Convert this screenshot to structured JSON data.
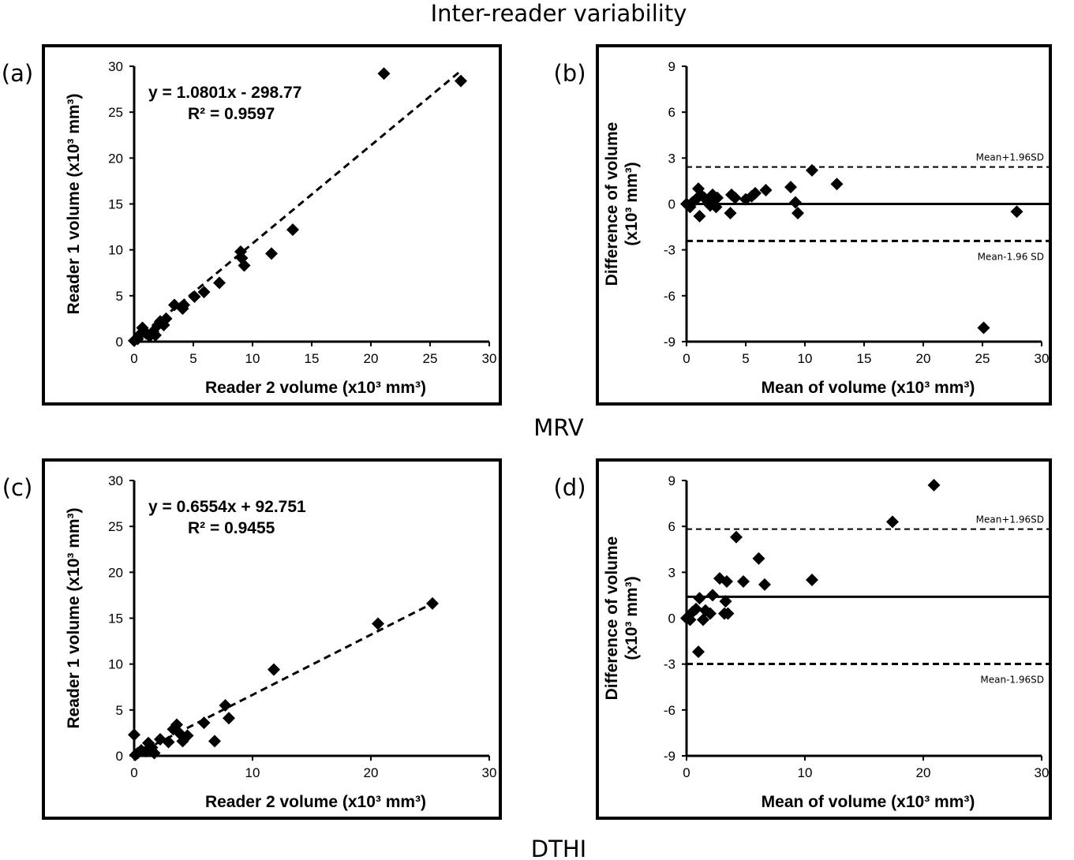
{
  "figure": {
    "title": "Inter-reader variability",
    "group_labels": [
      "MRV",
      "DTHI"
    ]
  },
  "chart_data": [
    {
      "panel": "(a)",
      "type": "scatter",
      "xlabel": "Reader 2 volume (x10³ mm³)",
      "ylabel": "Reader 1 volume (x10³ mm³)",
      "xlim": [
        0,
        30
      ],
      "ylim": [
        0,
        30
      ],
      "xticks": [
        0,
        5,
        10,
        15,
        20,
        25,
        30
      ],
      "yticks": [
        0,
        5,
        10,
        15,
        20,
        25,
        30
      ],
      "equation": "y = 1.0801x - 298.77",
      "r2": "R² = 0.9597",
      "trendline": {
        "slope": 1.0801,
        "intercept": -0.29877
      },
      "points": [
        [
          0,
          0.1
        ],
        [
          0.3,
          0.3
        ],
        [
          0.5,
          0.8
        ],
        [
          0.7,
          1.5
        ],
        [
          1,
          0.9
        ],
        [
          1.3,
          0.6
        ],
        [
          1.6,
          1.1
        ],
        [
          1.8,
          0.7
        ],
        [
          2,
          1.8
        ],
        [
          2.2,
          2.2
        ],
        [
          2.5,
          1.8
        ],
        [
          2.7,
          2.5
        ],
        [
          3.4,
          4
        ],
        [
          4.1,
          3.6
        ],
        [
          4.2,
          4
        ],
        [
          5.1,
          4.9
        ],
        [
          5.9,
          5.4
        ],
        [
          7.2,
          6.4
        ],
        [
          9,
          9.8
        ],
        [
          9.1,
          9.1
        ],
        [
          9.3,
          8.3
        ],
        [
          11.6,
          9.6
        ],
        [
          13.4,
          12.2
        ],
        [
          21.1,
          29.2
        ],
        [
          27.6,
          28.4
        ]
      ]
    },
    {
      "panel": "(b)",
      "type": "scatter",
      "xlabel": "Mean of volume (x10³ mm³)",
      "ylabel": "Difference of volume (x10³ mm³)",
      "ylabel_lines": [
        "Difference of volume",
        "(x10³ mm³)"
      ],
      "xlim": [
        0,
        30
      ],
      "ylim": [
        -9,
        9
      ],
      "xticks": [
        0,
        5,
        10,
        15,
        20,
        25,
        30
      ],
      "yticks": [
        -9,
        -6,
        -3,
        0,
        3,
        6,
        9
      ],
      "mean": 0.0,
      "upper": 2.42,
      "lower": -2.42,
      "upper_label": "Mean+1.96SD",
      "lower_label": "Mean-1.96 SD",
      "points": [
        [
          0,
          0
        ],
        [
          0.3,
          -0.2
        ],
        [
          0.5,
          0.1
        ],
        [
          0.8,
          0.3
        ],
        [
          1,
          1
        ],
        [
          1.1,
          -0.8
        ],
        [
          1.2,
          0.6
        ],
        [
          1.5,
          0.4
        ],
        [
          1.8,
          0.2
        ],
        [
          2,
          -0.1
        ],
        [
          2.2,
          0.6
        ],
        [
          2.3,
          0.2
        ],
        [
          2.5,
          -0.2
        ],
        [
          2.6,
          0.4
        ],
        [
          3.7,
          -0.6
        ],
        [
          3.8,
          0.6
        ],
        [
          4.1,
          0.4
        ],
        [
          5,
          0.3
        ],
        [
          5.5,
          0.5
        ],
        [
          5.8,
          0.7
        ],
        [
          6.7,
          0.9
        ],
        [
          8.8,
          1.1
        ],
        [
          9.2,
          0.1
        ],
        [
          9.4,
          -0.6
        ],
        [
          10.6,
          2.2
        ],
        [
          12.7,
          1.3
        ],
        [
          25.1,
          -8.1
        ],
        [
          27.9,
          -0.5
        ]
      ]
    },
    {
      "panel": "(c)",
      "type": "scatter",
      "xlabel": "Reader 2 volume (x10³ mm³)",
      "ylabel": "Reader 1 volume (x10³ mm³)",
      "xlim": [
        0,
        30
      ],
      "ylim": [
        0,
        30
      ],
      "xticks": [
        0,
        10,
        20,
        30
      ],
      "yticks": [
        0,
        5,
        10,
        15,
        20,
        25,
        30
      ],
      "equation": "y = 0.6554x + 92.751",
      "r2": "R² = 0.9455",
      "trendline": {
        "slope": 0.6554,
        "intercept": 0.092751
      },
      "points": [
        [
          0,
          2.3
        ],
        [
          0.1,
          0.1
        ],
        [
          0.3,
          0.3
        ],
        [
          0.6,
          0.6
        ],
        [
          1,
          0.5
        ],
        [
          1.2,
          1.4
        ],
        [
          1.5,
          0.9
        ],
        [
          1.7,
          0.3
        ],
        [
          2.2,
          1.8
        ],
        [
          2.9,
          1.5
        ],
        [
          3.3,
          2.9
        ],
        [
          3.6,
          3.4
        ],
        [
          3.8,
          2.5
        ],
        [
          4.1,
          1.6
        ],
        [
          4.5,
          2.2
        ],
        [
          5.9,
          3.6
        ],
        [
          6.8,
          1.6
        ],
        [
          7.7,
          5.5
        ],
        [
          8,
          4.1
        ],
        [
          11.8,
          9.4
        ],
        [
          20.6,
          14.4
        ],
        [
          25.2,
          16.6
        ]
      ]
    },
    {
      "panel": "(d)",
      "type": "scatter",
      "xlabel": "Mean of volume (x10³ mm³)",
      "ylabel": "Difference of volume (x10³ mm³)",
      "ylabel_lines": [
        "Difference of volume",
        "(x10³ mm³)"
      ],
      "xlim": [
        0,
        30
      ],
      "ylim": [
        -9,
        9
      ],
      "xticks": [
        0,
        10,
        20,
        30
      ],
      "yticks": [
        -9,
        -6,
        -3,
        0,
        3,
        6,
        9
      ],
      "mean": 1.4,
      "upper": 5.82,
      "lower": -2.99,
      "upper_label": "Mean+1.96SD",
      "lower_label": "Mean-1.96SD",
      "points": [
        [
          0,
          0
        ],
        [
          0.3,
          -0.1
        ],
        [
          0.5,
          0.4
        ],
        [
          0.8,
          0.6
        ],
        [
          1,
          -2.2
        ],
        [
          1.1,
          1.3
        ],
        [
          1.4,
          -0.1
        ],
        [
          1.6,
          0.5
        ],
        [
          2,
          0.3
        ],
        [
          2.2,
          1.5
        ],
        [
          2.8,
          2.6
        ],
        [
          3.2,
          0.3
        ],
        [
          3.3,
          1.1
        ],
        [
          3.4,
          2.4
        ],
        [
          3.5,
          0.3
        ],
        [
          4.2,
          5.3
        ],
        [
          4.8,
          2.4
        ],
        [
          6.1,
          3.9
        ],
        [
          6.6,
          2.2
        ],
        [
          10.6,
          2.5
        ],
        [
          17.4,
          6.3
        ],
        [
          20.9,
          8.7
        ]
      ]
    }
  ],
  "colors": {
    "ink": "#000000",
    "background": "#ffffff"
  }
}
